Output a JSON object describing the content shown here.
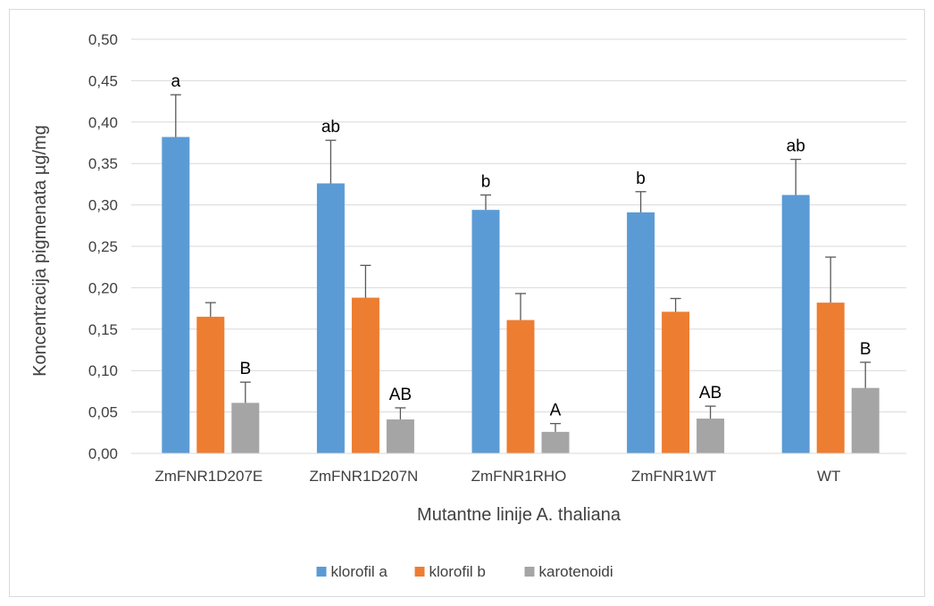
{
  "chart_data": {
    "type": "bar",
    "title": "",
    "xlabel": "Mutantne linije A. thaliana",
    "ylabel": "Koncentracija pigmenata µg/mg",
    "ylim": [
      0,
      0.5
    ],
    "ytick_step": 0.05,
    "ytick_labels": [
      "0,00",
      "0,05",
      "0,10",
      "0,15",
      "0,20",
      "0,25",
      "0,30",
      "0,35",
      "0,40",
      "0,45",
      "0,50"
    ],
    "grid": "horizontal",
    "legend_position": "bottom",
    "categories": [
      "ZmFNR1D207E",
      "ZmFNR1D207N",
      "ZmFNR1RHO",
      "ZmFNR1WT",
      "WT"
    ],
    "series": [
      {
        "name": "klorofil a",
        "color": "#5b9bd5",
        "values": [
          0.382,
          0.326,
          0.294,
          0.291,
          0.312
        ],
        "errors": [
          0.051,
          0.052,
          0.018,
          0.025,
          0.043
        ],
        "labels": [
          "a",
          "ab",
          "b",
          "b",
          "ab"
        ]
      },
      {
        "name": "klorofil b",
        "color": "#ed7d31",
        "values": [
          0.165,
          0.188,
          0.161,
          0.171,
          0.182
        ],
        "errors": [
          0.017,
          0.039,
          0.032,
          0.016,
          0.055
        ],
        "labels": [
          "",
          "",
          "",
          "",
          ""
        ]
      },
      {
        "name": "karotenoidi",
        "color": "#a5a5a5",
        "values": [
          0.061,
          0.041,
          0.026,
          0.042,
          0.079
        ],
        "errors": [
          0.025,
          0.014,
          0.01,
          0.015,
          0.031
        ],
        "labels": [
          "B",
          "AB",
          "A",
          "AB",
          "B"
        ]
      }
    ]
  }
}
